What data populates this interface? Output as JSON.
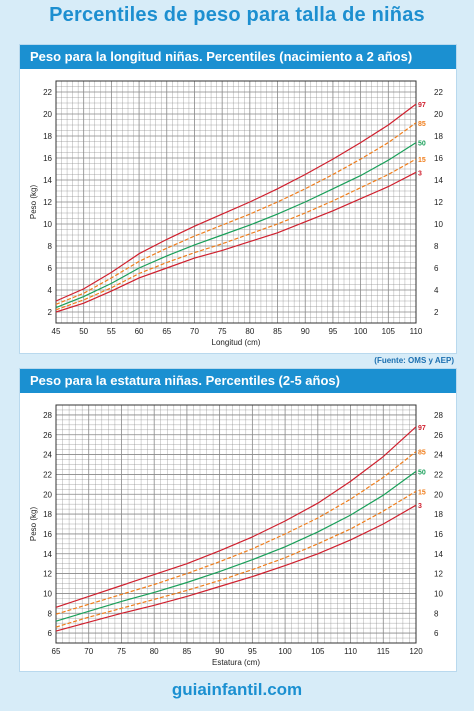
{
  "page": {
    "title": "Percentiles de peso para talla de niñas",
    "source": "(Fuente: OMS y AEP)",
    "brand": "guiainfantil.com"
  },
  "colors": {
    "p97": "#d0202e",
    "p85": "#f07d1a",
    "p50": "#1aa05a",
    "p15": "#f07d1a",
    "p3": "#d0202e",
    "header": "#1b90d1",
    "grid": "#888888"
  },
  "chart_data": [
    {
      "type": "line",
      "title": "Peso para la longitud niñas. Percentiles (nacimiento a 2 años)",
      "xlabel": "Longitud (cm)",
      "ylabel": "Peso (kg)",
      "xlim": [
        45,
        110
      ],
      "ylim": [
        1,
        23
      ],
      "x_ticks": [
        45,
        50,
        55,
        60,
        65,
        70,
        75,
        80,
        85,
        90,
        95,
        100,
        105,
        110
      ],
      "y_ticks": [
        2,
        4,
        6,
        8,
        10,
        12,
        14,
        16,
        18,
        20,
        22
      ],
      "grid": true,
      "x": [
        45,
        50,
        55,
        60,
        65,
        70,
        75,
        80,
        85,
        90,
        95,
        100,
        105,
        110
      ],
      "series": [
        {
          "name": "97",
          "dash": false,
          "colorKey": "p97",
          "values": [
            3.0,
            4.1,
            5.6,
            7.3,
            8.6,
            9.8,
            10.9,
            12.0,
            13.2,
            14.5,
            15.9,
            17.4,
            19.0,
            20.9
          ]
        },
        {
          "name": "85",
          "dash": true,
          "colorKey": "p85",
          "values": [
            2.7,
            3.7,
            5.1,
            6.6,
            7.8,
            8.9,
            9.9,
            10.9,
            12.0,
            13.2,
            14.5,
            15.9,
            17.4,
            19.2
          ]
        },
        {
          "name": "50",
          "dash": false,
          "colorKey": "p50",
          "values": [
            2.4,
            3.4,
            4.6,
            6.0,
            7.1,
            8.1,
            9.0,
            9.9,
            10.9,
            12.0,
            13.2,
            14.4,
            15.8,
            17.4
          ]
        },
        {
          "name": "15",
          "dash": true,
          "colorKey": "p15",
          "values": [
            2.2,
            3.1,
            4.2,
            5.5,
            6.5,
            7.4,
            8.2,
            9.1,
            10.0,
            11.0,
            12.1,
            13.3,
            14.5,
            15.9
          ]
        },
        {
          "name": "3",
          "dash": false,
          "colorKey": "p3",
          "values": [
            2.0,
            2.8,
            3.9,
            5.1,
            6.0,
            6.9,
            7.6,
            8.4,
            9.2,
            10.2,
            11.2,
            12.3,
            13.4,
            14.7
          ]
        }
      ]
    },
    {
      "type": "line",
      "title": "Peso para la estatura niñas. Percentiles (2-5 años)",
      "xlabel": "Estatura (cm)",
      "ylabel": "Peso (kg)",
      "xlim": [
        65,
        120
      ],
      "ylim": [
        5,
        29
      ],
      "x_ticks": [
        65,
        70,
        75,
        80,
        85,
        90,
        95,
        100,
        105,
        110,
        115,
        120
      ],
      "y_ticks": [
        6,
        8,
        10,
        12,
        14,
        16,
        18,
        20,
        22,
        24,
        26,
        28
      ],
      "grid": true,
      "x": [
        65,
        70,
        75,
        80,
        85,
        90,
        95,
        100,
        105,
        110,
        115,
        120
      ],
      "series": [
        {
          "name": "97",
          "dash": false,
          "colorKey": "p97",
          "values": [
            8.6,
            9.7,
            10.8,
            11.9,
            13.0,
            14.3,
            15.7,
            17.3,
            19.1,
            21.3,
            23.8,
            26.8
          ]
        },
        {
          "name": "85",
          "dash": true,
          "colorKey": "p85",
          "values": [
            7.9,
            8.9,
            9.9,
            10.9,
            12.0,
            13.2,
            14.5,
            16.0,
            17.6,
            19.5,
            21.7,
            24.3
          ]
        },
        {
          "name": "50",
          "dash": false,
          "colorKey": "p50",
          "values": [
            7.2,
            8.2,
            9.2,
            10.1,
            11.1,
            12.2,
            13.4,
            14.7,
            16.2,
            17.9,
            19.9,
            22.3
          ]
        },
        {
          "name": "15",
          "dash": true,
          "colorKey": "p15",
          "values": [
            6.6,
            7.6,
            8.5,
            9.4,
            10.3,
            11.3,
            12.4,
            13.6,
            15.0,
            16.5,
            18.3,
            20.3
          ]
        },
        {
          "name": "3",
          "dash": false,
          "colorKey": "p3",
          "values": [
            6.2,
            7.1,
            8.0,
            8.8,
            9.7,
            10.7,
            11.7,
            12.8,
            14.0,
            15.4,
            17.0,
            18.9
          ]
        }
      ]
    }
  ]
}
